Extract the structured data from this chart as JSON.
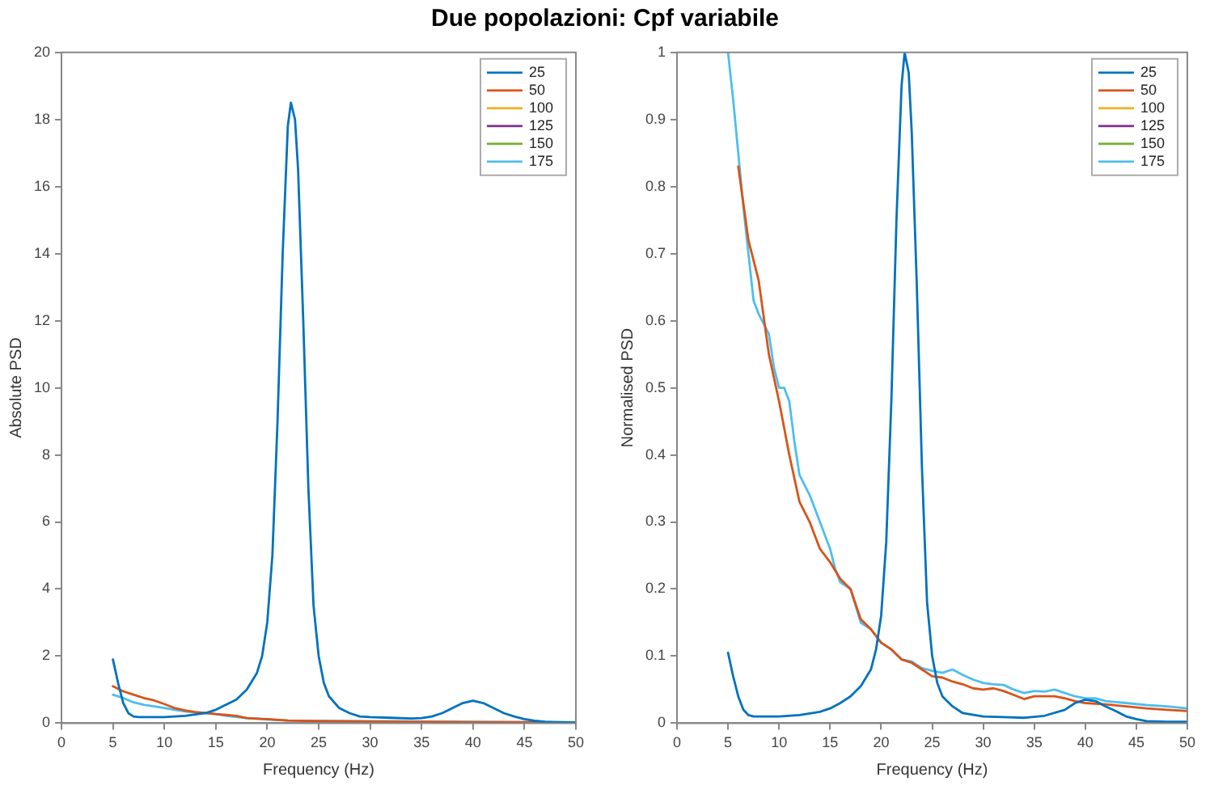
{
  "chart_data": [
    {
      "type": "line",
      "title": "Due popolazioni: Cpf variabile",
      "xlabel": "Frequency (Hz)",
      "ylabel": "Absolute PSD",
      "xlim": [
        0,
        50
      ],
      "xticks": [
        0,
        5,
        10,
        15,
        20,
        25,
        30,
        35,
        40,
        45,
        50
      ],
      "ylim": [
        0,
        20
      ],
      "yticks": [
        0,
        2,
        4,
        6,
        8,
        10,
        12,
        14,
        16,
        18,
        20
      ],
      "legend": "top right",
      "marker": "none",
      "grid": false,
      "series": [
        {
          "name": "25",
          "color": "#0072bd",
          "x": [
            5,
            5.5,
            6,
            6.5,
            7,
            7.5,
            10,
            12,
            14,
            15,
            16,
            17,
            18,
            19,
            19.5,
            20,
            20.5,
            21,
            21.5,
            22,
            22.3,
            22.7,
            23,
            23.5,
            24,
            24.5,
            25,
            25.5,
            26,
            27,
            28,
            29,
            30,
            32,
            34,
            35,
            36,
            37,
            38,
            39,
            40,
            41,
            42,
            43,
            44,
            45,
            46,
            47,
            48,
            50
          ],
          "values": [
            1.9,
            1.2,
            0.6,
            0.3,
            0.2,
            0.18,
            0.18,
            0.22,
            0.3,
            0.4,
            0.55,
            0.7,
            1.0,
            1.5,
            2.0,
            3.0,
            5.0,
            9.0,
            14.0,
            17.8,
            18.5,
            18.0,
            16.5,
            12.0,
            7.0,
            3.5,
            2.0,
            1.2,
            0.8,
            0.45,
            0.3,
            0.2,
            0.18,
            0.16,
            0.14,
            0.15,
            0.2,
            0.3,
            0.45,
            0.6,
            0.67,
            0.6,
            0.45,
            0.3,
            0.2,
            0.12,
            0.07,
            0.04,
            0.03,
            0.02
          ]
        },
        {
          "name": "50",
          "color": "#d95319",
          "x": [
            5,
            6,
            7,
            8,
            9,
            10,
            11,
            12,
            13,
            14,
            15,
            16,
            17,
            18,
            20,
            22,
            25,
            30,
            35,
            40,
            45,
            50
          ],
          "values": [
            1.1,
            0.95,
            0.85,
            0.75,
            0.68,
            0.57,
            0.45,
            0.38,
            0.33,
            0.3,
            0.27,
            0.25,
            0.22,
            0.15,
            0.12,
            0.08,
            0.06,
            0.05,
            0.04,
            0.03,
            0.03,
            0.02
          ]
        },
        {
          "name": "100",
          "color": "#edb120"
        },
        {
          "name": "125",
          "color": "#7e2f8e"
        },
        {
          "name": "150",
          "color": "#77ac30"
        },
        {
          "name": "175",
          "color": "#4dbeee",
          "x": [
            5,
            6,
            7,
            8,
            9,
            10,
            11,
            12,
            13,
            14,
            15,
            16,
            18,
            20,
            22,
            25,
            30,
            35,
            40,
            45,
            50
          ],
          "values": [
            0.85,
            0.75,
            0.62,
            0.55,
            0.5,
            0.45,
            0.4,
            0.35,
            0.32,
            0.3,
            0.27,
            0.22,
            0.15,
            0.11,
            0.08,
            0.07,
            0.06,
            0.05,
            0.04,
            0.03,
            0.03
          ]
        }
      ]
    },
    {
      "type": "line",
      "xlabel": "Frequency (Hz)",
      "ylabel": "Normalised PSD",
      "xlim": [
        0,
        50
      ],
      "xticks": [
        0,
        5,
        10,
        15,
        20,
        25,
        30,
        35,
        40,
        45,
        50
      ],
      "ylim": [
        0,
        1
      ],
      "yticks": [
        0,
        0.1,
        0.2,
        0.3,
        0.4,
        0.5,
        0.6,
        0.7,
        0.8,
        0.9,
        1
      ],
      "legend": "top right",
      "marker": "none",
      "grid": false,
      "series": [
        {
          "name": "25",
          "color": "#0072bd",
          "x": [
            5,
            5.5,
            6,
            6.5,
            7,
            7.5,
            10,
            12,
            14,
            15,
            16,
            17,
            18,
            19,
            19.5,
            20,
            20.5,
            21,
            21.5,
            22,
            22.3,
            22.7,
            23,
            23.5,
            24,
            24.5,
            25,
            25.5,
            26,
            27,
            28,
            30,
            32,
            34,
            36,
            38,
            39,
            40,
            41,
            42,
            43,
            44,
            45,
            46,
            48,
            50
          ],
          "values": [
            0.105,
            0.07,
            0.04,
            0.02,
            0.012,
            0.01,
            0.01,
            0.012,
            0.017,
            0.022,
            0.03,
            0.04,
            0.055,
            0.08,
            0.11,
            0.16,
            0.27,
            0.48,
            0.75,
            0.95,
            1.0,
            0.97,
            0.88,
            0.65,
            0.38,
            0.18,
            0.1,
            0.06,
            0.04,
            0.025,
            0.015,
            0.01,
            0.009,
            0.008,
            0.011,
            0.02,
            0.03,
            0.035,
            0.033,
            0.025,
            0.018,
            0.01,
            0.006,
            0.003,
            0.002,
            0.002
          ]
        },
        {
          "name": "50",
          "color": "#d95319",
          "x": [
            6,
            7,
            8,
            9,
            10,
            11,
            12,
            13,
            14,
            15,
            16,
            17,
            18,
            19,
            20,
            21,
            22,
            23,
            24,
            25,
            26,
            27,
            28,
            29,
            30,
            31,
            32,
            33,
            34,
            35,
            36,
            37,
            38,
            39,
            40,
            42,
            44,
            46,
            48,
            50
          ],
          "values": [
            0.83,
            0.72,
            0.66,
            0.55,
            0.48,
            0.4,
            0.33,
            0.3,
            0.26,
            0.24,
            0.215,
            0.2,
            0.155,
            0.14,
            0.12,
            0.11,
            0.095,
            0.09,
            0.08,
            0.07,
            0.068,
            0.062,
            0.058,
            0.052,
            0.05,
            0.052,
            0.048,
            0.042,
            0.036,
            0.04,
            0.04,
            0.04,
            0.037,
            0.033,
            0.03,
            0.028,
            0.025,
            0.022,
            0.02,
            0.018
          ]
        },
        {
          "name": "100",
          "color": "#edb120"
        },
        {
          "name": "125",
          "color": "#7e2f8e"
        },
        {
          "name": "150",
          "color": "#77ac30"
        },
        {
          "name": "175",
          "color": "#4dbeee",
          "x": [
            5,
            5.5,
            6,
            6.5,
            7,
            7.5,
            8,
            9,
            9.5,
            10,
            10.5,
            11,
            11.5,
            12,
            13,
            14,
            15,
            15.5,
            16,
            17,
            18,
            19,
            20,
            21,
            22,
            23,
            24,
            25,
            26,
            27,
            28,
            29,
            30,
            31,
            32,
            33,
            34,
            35,
            36,
            37,
            38,
            39,
            40,
            41,
            42,
            44,
            46,
            48,
            50
          ],
          "values": [
            1.0,
            0.93,
            0.85,
            0.77,
            0.7,
            0.63,
            0.61,
            0.58,
            0.53,
            0.5,
            0.5,
            0.48,
            0.42,
            0.37,
            0.34,
            0.3,
            0.26,
            0.23,
            0.21,
            0.2,
            0.15,
            0.14,
            0.12,
            0.11,
            0.095,
            0.092,
            0.082,
            0.078,
            0.075,
            0.08,
            0.072,
            0.065,
            0.06,
            0.058,
            0.057,
            0.05,
            0.045,
            0.048,
            0.047,
            0.05,
            0.045,
            0.04,
            0.037,
            0.037,
            0.033,
            0.03,
            0.027,
            0.025,
            0.022
          ]
        }
      ]
    }
  ]
}
